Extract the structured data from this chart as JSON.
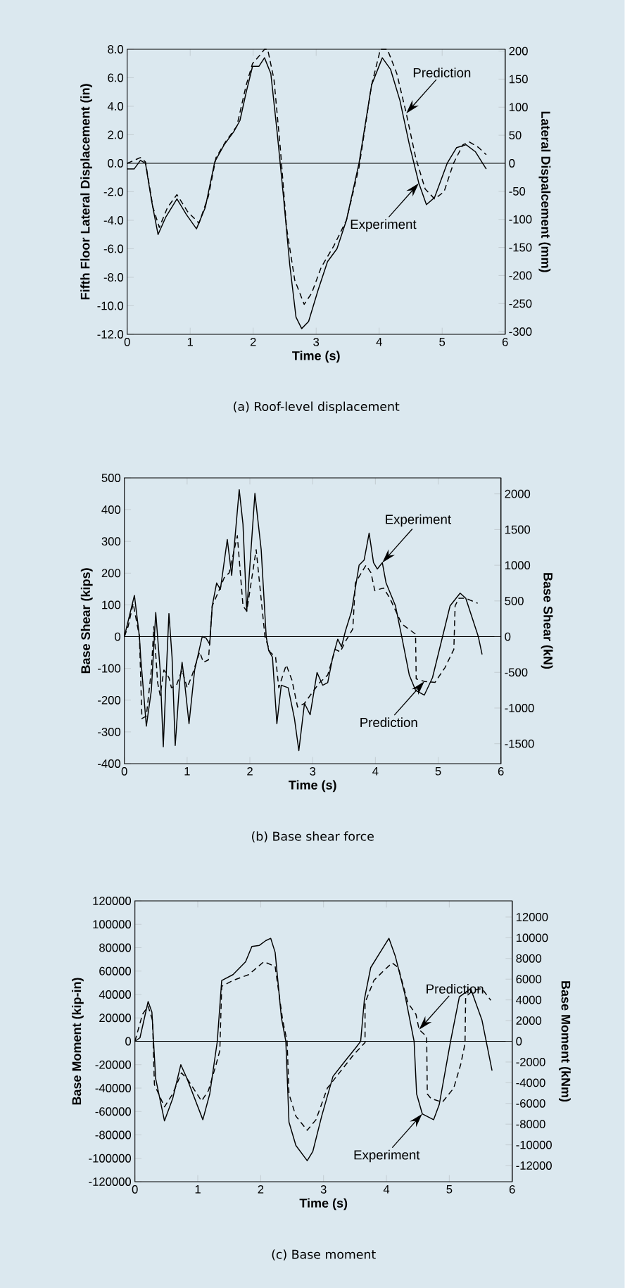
{
  "chart_data": [
    {
      "type": "line",
      "xlabel": "Time (s)",
      "ylabel": "Fifth Floor  Lateral Displacement (in)",
      "y2label": "Lateral Dispalcement (mm)",
      "xlim": [
        0,
        6
      ],
      "xticks": [
        0,
        1,
        2,
        3,
        4,
        5,
        6
      ],
      "ylim": [
        -12,
        8
      ],
      "yticks": [
        {
          "value": -12,
          "label": "-12.0"
        },
        {
          "value": -10,
          "label": "-10.0"
        },
        {
          "value": -8,
          "label": "-8.0"
        },
        {
          "value": -6,
          "label": "-6.0"
        },
        {
          "value": -4,
          "label": "-4.0"
        },
        {
          "value": -2,
          "label": "-2.0"
        },
        {
          "value": 0,
          "label": "0.0"
        },
        {
          "value": 2,
          "label": "2.0"
        },
        {
          "value": 4,
          "label": "4.0"
        },
        {
          "value": 6,
          "label": "6.0"
        },
        {
          "value": 8,
          "label": "8.0"
        }
      ],
      "y2lim": [
        -304.8,
        203.2
      ],
      "y2ticks": [
        -300,
        -250,
        -200,
        -150,
        -100,
        -50,
        0,
        50,
        100,
        150,
        200
      ],
      "ref_lines": [
        {
          "axis": "y",
          "value": 0,
          "color": "#000000"
        }
      ],
      "annotations": [
        {
          "text": "Prediction",
          "x": 4.43,
          "y": 3.5
        },
        {
          "text": "Experiment",
          "x": 4.63,
          "y": -1.4
        },
        "(a) Roof-level displacement"
      ],
      "series": [
        {
          "color": "#000000",
          "line_style": "solid",
          "x": [
            0,
            0.11,
            0.21,
            0.29,
            0.39,
            0.49,
            0.61,
            0.79,
            0.94,
            1.1,
            1.24,
            1.39,
            1.54,
            1.69,
            1.79,
            1.89,
            1.99,
            2.09,
            2.18,
            2.28,
            2.38,
            2.48,
            2.58,
            2.68,
            2.77,
            2.88,
            3.03,
            3.18,
            3.33,
            3.48,
            3.68,
            3.88,
            4.05,
            4.18,
            4.33,
            4.48,
            4.63,
            4.75,
            4.88,
            5.08,
            5.23,
            5.38,
            5.53,
            5.7
          ],
          "values": [
            -0.4,
            -0.4,
            0.2,
            0.0,
            -2.7,
            -5.0,
            -3.8,
            -2.5,
            -3.6,
            -4.6,
            -3.1,
            0.1,
            1.3,
            2.2,
            3.0,
            5.0,
            6.8,
            6.8,
            7.4,
            6.3,
            2.2,
            -2.3,
            -7.1,
            -10.8,
            -11.6,
            -11.1,
            -8.9,
            -6.9,
            -6.0,
            -4.0,
            0.0,
            5.5,
            7.4,
            6.6,
            4.4,
            1.3,
            -1.4,
            -2.9,
            -2.4,
            0.0,
            1.1,
            1.3,
            0.8,
            -0.4
          ]
        },
        {
          "color": "#000000",
          "line_style": "dashed",
          "x": [
            0,
            0.21,
            0.29,
            0.41,
            0.51,
            0.64,
            0.79,
            0.96,
            1.14,
            1.29,
            1.41,
            1.56,
            1.74,
            1.89,
            1.99,
            2.09,
            2.18,
            2.23,
            2.33,
            2.43,
            2.53,
            2.66,
            2.81,
            2.93,
            3.08,
            3.28,
            3.48,
            3.68,
            3.88,
            4.02,
            4.13,
            4.28,
            4.43,
            4.58,
            4.73,
            4.88,
            5.03,
            5.18,
            5.33,
            5.43,
            5.58,
            5.7
          ],
          "values": [
            0,
            0.4,
            0.1,
            -3.1,
            -4.5,
            -3.1,
            -2.2,
            -3.4,
            -4.2,
            -2.3,
            0.4,
            1.5,
            2.6,
            5.5,
            7.0,
            7.5,
            8.0,
            8.0,
            5.9,
            1.1,
            -4.5,
            -8.2,
            -9.9,
            -9.1,
            -7.3,
            -5.8,
            -4.0,
            -0.3,
            5.5,
            8.0,
            8.0,
            6.3,
            3.5,
            0.4,
            -1.8,
            -2.5,
            -2.0,
            0.0,
            1.3,
            1.5,
            1.1,
            0.6
          ]
        }
      ]
    },
    {
      "type": "line",
      "xlabel": "Time (s)",
      "ylabel": "Base Shear (kips)",
      "y2label": "Base Shear (kN)",
      "xlim": [
        0,
        6
      ],
      "xticks": [
        0,
        1,
        2,
        3,
        4,
        5,
        6
      ],
      "ylim": [
        -400,
        500
      ],
      "yticks": [
        -400,
        -300,
        -200,
        -100,
        0,
        100,
        200,
        300,
        400,
        500
      ],
      "y2lim": [
        -1779,
        2224
      ],
      "y2ticks": [
        -1500,
        -1000,
        -500,
        0,
        500,
        1000,
        1500,
        2000
      ],
      "ref_lines": [
        {
          "axis": "y",
          "value": 0,
          "color": "#000000"
        }
      ],
      "annotations": [
        {
          "text": "Experiment",
          "x": 4.11,
          "y": 233
        },
        {
          "text": "Prediction",
          "x": 4.78,
          "y": -141
        },
        "(b) Base shear force"
      ],
      "series": [
        {
          "color": "#000000",
          "line_style": "solid",
          "x": [
            0,
            0.16,
            0.24,
            0.26,
            0.35,
            0.43,
            0.5,
            0.57,
            0.62,
            0.67,
            0.71,
            0.76,
            0.81,
            0.88,
            0.92,
            0.96,
            1.03,
            1.12,
            1.24,
            1.3,
            1.36,
            1.4,
            1.47,
            1.53,
            1.64,
            1.71,
            1.83,
            1.89,
            1.95,
            2.08,
            2.18,
            2.26,
            2.3,
            2.36,
            2.43,
            2.5,
            2.61,
            2.71,
            2.78,
            2.87,
            2.96,
            3.07,
            3.16,
            3.24,
            3.32,
            3.4,
            3.46,
            3.52,
            3.62,
            3.74,
            3.82,
            3.9,
            3.97,
            4.03,
            4.11,
            4.17,
            4.32,
            4.42,
            4.54,
            4.64,
            4.78,
            4.91,
            5.07,
            5.19,
            5.35,
            5.44,
            5.64,
            5.7
          ],
          "values": [
            0,
            130,
            0,
            -65,
            -282,
            -169,
            76,
            -105,
            -347,
            -105,
            73,
            -65,
            -343,
            -145,
            -81,
            -145,
            -274,
            -105,
            0,
            -4,
            -24,
            97,
            169,
            149,
            306,
            193,
            463,
            354,
            80,
            451,
            274,
            0,
            -44,
            -65,
            -274,
            -153,
            -161,
            -258,
            -359,
            -210,
            -246,
            -113,
            -153,
            -145,
            -65,
            -8,
            -32,
            16,
            80,
            225,
            241,
            326,
            233,
            213,
            233,
            169,
            97,
            0,
            -121,
            -169,
            -184,
            -129,
            0,
            97,
            137,
            121,
            0,
            -56
          ]
        },
        {
          "color": "#000000",
          "line_style": "dashed",
          "x": [
            0,
            0.06,
            0.14,
            0.24,
            0.28,
            0.35,
            0.43,
            0.47,
            0.53,
            0.57,
            0.63,
            0.71,
            0.75,
            0.83,
            0.92,
            1.0,
            1.08,
            1.2,
            1.26,
            1.34,
            1.4,
            1.49,
            1.59,
            1.67,
            1.8,
            1.89,
            1.95,
            2.1,
            2.24,
            2.32,
            2.41,
            2.46,
            2.58,
            2.67,
            2.76,
            2.87,
            2.99,
            3.11,
            3.24,
            3.36,
            3.44,
            3.52,
            3.64,
            3.68,
            3.85,
            3.93,
            3.99,
            4.13,
            4.23,
            4.42,
            4.64,
            4.65,
            4.78,
            4.95,
            5.11,
            5.25,
            5.27,
            5.33,
            5.44,
            5.63
          ],
          "values": [
            0,
            32,
            105,
            0,
            -258,
            -250,
            -105,
            32,
            -145,
            -185,
            -105,
            -129,
            -161,
            -153,
            -105,
            -161,
            -121,
            -48,
            -81,
            -73,
            97,
            137,
            185,
            201,
            318,
            97,
            80,
            274,
            0,
            -48,
            -65,
            -161,
            -89,
            -137,
            -222,
            -210,
            -177,
            -145,
            -121,
            -40,
            -48,
            -16,
            24,
            169,
            225,
            201,
            145,
            153,
            121,
            40,
            8,
            -133,
            -141,
            -144,
            -97,
            -40,
            97,
            121,
            121,
            105
          ]
        }
      ]
    },
    {
      "type": "line",
      "xlabel": "Time (s)",
      "ylabel": "Base Moment (kip-in)",
      "y2label": "Base Moment (kNm)",
      "xlim": [
        0,
        6
      ],
      "xticks": [
        0,
        1,
        2,
        3,
        4,
        5,
        6
      ],
      "ylim": [
        -120000,
        120000
      ],
      "yticks": [
        -120000,
        -100000,
        -80000,
        -60000,
        -40000,
        -20000,
        0,
        20000,
        40000,
        60000,
        80000,
        100000,
        120000
      ],
      "y2lim": [
        -13560,
        13560
      ],
      "y2ticks": [
        -12000,
        -10000,
        -8000,
        -6000,
        -4000,
        -2000,
        0,
        2000,
        4000,
        6000,
        8000,
        10000,
        12000
      ],
      "ref_lines": [
        {
          "axis": "y",
          "value": 0,
          "color": "#000000"
        }
      ],
      "annotations": [
        {
          "text": "Prediction",
          "x": 4.52,
          "y": 10000
        },
        {
          "text": "Experiment",
          "x": 4.57,
          "y": -62000
        },
        "(c) Base moment"
      ],
      "series": [
        {
          "color": "#000000",
          "line_style": "solid",
          "x": [
            0,
            0.08,
            0.21,
            0.27,
            0.33,
            0.47,
            0.6,
            0.73,
            0.83,
            1.08,
            1.19,
            1.31,
            1.38,
            1.56,
            1.76,
            1.86,
            1.98,
            2.08,
            2.16,
            2.23,
            2.33,
            2.4,
            2.45,
            2.56,
            2.74,
            2.83,
            2.97,
            3.15,
            3.34,
            3.52,
            3.59,
            3.65,
            3.75,
            3.9,
            4.04,
            4.14,
            4.29,
            4.44,
            4.48,
            4.57,
            4.75,
            4.84,
            5.02,
            5.16,
            5.34,
            5.52,
            5.68
          ],
          "values": [
            0,
            3000,
            34000,
            25000,
            -32000,
            -68000,
            -49000,
            -20000,
            -32000,
            -67000,
            -45000,
            0,
            52000,
            57000,
            68000,
            81000,
            82000,
            86000,
            88000,
            76000,
            20000,
            0,
            -69000,
            -89000,
            -102000,
            -94000,
            -64000,
            -30000,
            -17000,
            -5000,
            0,
            36000,
            63000,
            76000,
            88000,
            73000,
            41000,
            0,
            -45000,
            -62000,
            -67000,
            -54000,
            0,
            38000,
            45000,
            18000,
            -25000
          ]
        },
        {
          "color": "#000000",
          "line_style": "dashed",
          "x": [
            0,
            0.12,
            0.21,
            0.28,
            0.31,
            0.47,
            0.6,
            0.74,
            0.83,
            1.06,
            1.17,
            1.29,
            1.35,
            1.38,
            1.56,
            1.81,
            2.05,
            2.23,
            2.35,
            2.42,
            2.45,
            2.56,
            2.74,
            2.88,
            3.06,
            3.25,
            3.47,
            3.66,
            3.66,
            3.8,
            3.95,
            4.09,
            4.19,
            4.34,
            4.47,
            4.52,
            4.64,
            4.65,
            4.71,
            4.89,
            5.07,
            5.18,
            5.25,
            5.26,
            5.39,
            5.52,
            5.66
          ],
          "values": [
            0,
            23000,
            30000,
            18000,
            -37000,
            -56000,
            -45000,
            -27000,
            -32000,
            -51000,
            -42000,
            -20000,
            -8000,
            47000,
            52000,
            57000,
            68000,
            64000,
            18000,
            0,
            -45000,
            -64000,
            -76000,
            -67000,
            -40000,
            -27000,
            -12000,
            -1000,
            33000,
            52000,
            60000,
            67000,
            63000,
            33000,
            23000,
            10000,
            4000,
            -45000,
            -49000,
            -52000,
            -40000,
            -20000,
            -2000,
            38000,
            44000,
            45000,
            35000
          ]
        }
      ]
    }
  ]
}
